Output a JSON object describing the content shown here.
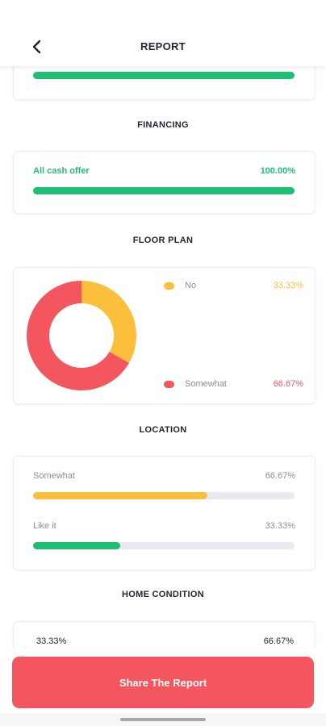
{
  "header": {
    "title": "REPORT"
  },
  "colors": {
    "green": "#1dbf73",
    "yellow": "#fcbf3b",
    "red": "#f4565f",
    "track": "#e8eaf0"
  },
  "top_bar": {
    "percent": 100
  },
  "financing": {
    "title": "FINANCING",
    "label": "All cash offer",
    "value": "100.00%",
    "percent": 100
  },
  "floor_plan": {
    "title": "FLOOR PLAN",
    "legend": [
      {
        "label": "No",
        "value": "33.33%",
        "color": "#fcbf3b"
      },
      {
        "label": "Somewhat",
        "value": "66.67%",
        "color": "#f4565f"
      }
    ],
    "chart_data": {
      "type": "pie",
      "categories": [
        "No",
        "Somewhat"
      ],
      "values": [
        33.33,
        66.67
      ]
    }
  },
  "location": {
    "title": "LOCATION",
    "rows": [
      {
        "label": "Somewhat",
        "value": "66.67%",
        "percent": 66.67,
        "color": "#fcbf3b"
      },
      {
        "label": "Like it",
        "value": "33.33%",
        "percent": 33.33,
        "color": "#1dbf73"
      }
    ]
  },
  "home_condition": {
    "title": "HOME CONDITION",
    "left_value": "33.33%",
    "right_value": "66.67%"
  },
  "share_button": {
    "label": "Share The Report"
  }
}
